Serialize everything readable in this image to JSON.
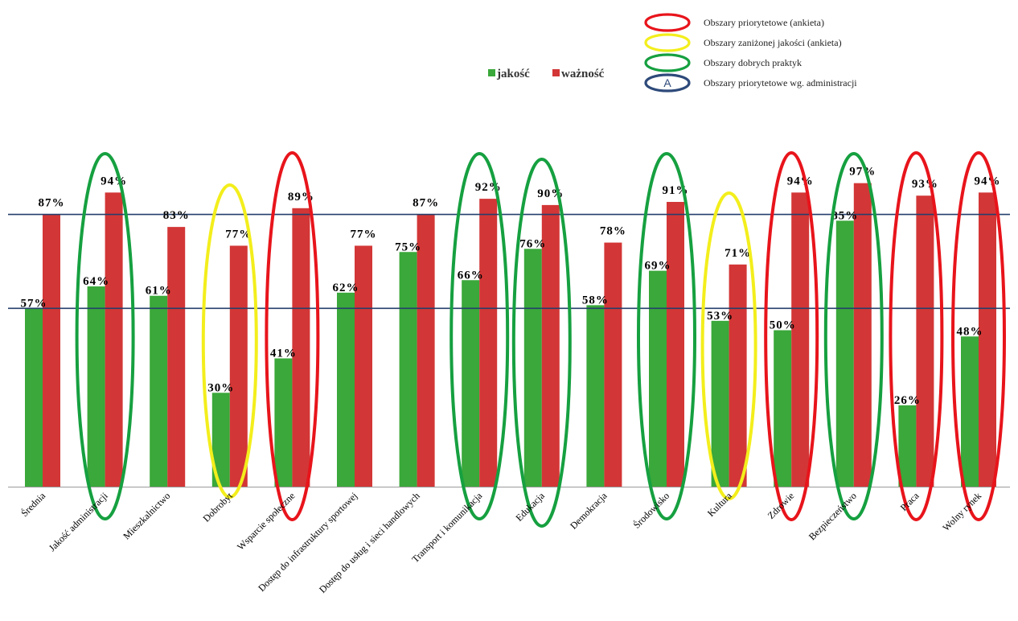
{
  "chart_data": {
    "type": "bar",
    "categories": [
      "Średnia",
      "Jakość administracji",
      "Mieszkalnictwo",
      "Dobrobyt",
      "Wsparcie społeczne",
      "Dostęp do infrastruktury sportowej",
      "Dostęp do usług i sieci handlowych",
      "Transport i komunikacja",
      "Edukacja",
      "Demokracja",
      "Środowisko",
      "Kultura",
      "Zdrowie",
      "Bezpieczeństwo",
      "Praca",
      "Wolny rynek"
    ],
    "series": [
      {
        "name": "jakość",
        "color": "#3aa83a",
        "values": [
          57,
          64,
          61,
          30,
          41,
          62,
          75,
          66,
          76,
          58,
          69,
          53,
          50,
          85,
          26,
          48
        ]
      },
      {
        "name": "ważność",
        "color": "#d33636",
        "values": [
          87,
          94,
          83,
          77,
          89,
          77,
          87,
          92,
          90,
          78,
          91,
          71,
          94,
          97,
          93,
          94
        ]
      }
    ],
    "data_labels": {
      "jakość": [
        "57%",
        "64%",
        "61%",
        "30%",
        "41%",
        "62%",
        "75%",
        "66%",
        "76%",
        "58%",
        "69%",
        "53%",
        "50%",
        "85%",
        "26%",
        "48%"
      ],
      "ważność": [
        "87%",
        "94%",
        "83%",
        "77%",
        "89%",
        "77%",
        "87%",
        "92%",
        "90%",
        "78%",
        "91%",
        "71%",
        "94%",
        "97%",
        "93%",
        "94%"
      ]
    },
    "reference_lines": [
      57,
      87
    ],
    "ylim": [
      0,
      100
    ],
    "title": "",
    "xlabel": "",
    "ylabel": "",
    "grid": false,
    "series_legend_position": "top-center",
    "highlight_legend": [
      {
        "type": "red-ellipse",
        "color": "#e8141b",
        "label": "Obszary priorytetowe (ankieta)"
      },
      {
        "type": "yellow-ellipse",
        "color": "#f3ee1c",
        "label": "Obszary zaniżonej jakości (ankieta)"
      },
      {
        "type": "green-ellipse",
        "color": "#16a040",
        "label": "Obszary dobrych praktyk"
      },
      {
        "type": "admin-ellipse",
        "color": "#2e4a7a",
        "label": "Obszary priorytetowe wg. administracji",
        "letter": "A"
      }
    ],
    "highlights": [
      {
        "category": "Jakość administracji",
        "type": "green"
      },
      {
        "category": "Dobrobyt",
        "type": "yellow"
      },
      {
        "category": "Wsparcie społeczne",
        "type": "red"
      },
      {
        "category": "Transport i komunikacja",
        "type": "green"
      },
      {
        "category": "Edukacja",
        "type": "green"
      },
      {
        "category": "Środowisko",
        "type": "green"
      },
      {
        "category": "Kultura",
        "type": "yellow"
      },
      {
        "category": "Zdrowie",
        "type": "red"
      },
      {
        "category": "Bezpieczeństwo",
        "type": "green"
      },
      {
        "category": "Praca",
        "type": "red"
      },
      {
        "category": "Wolny rynek",
        "type": "red"
      }
    ]
  }
}
